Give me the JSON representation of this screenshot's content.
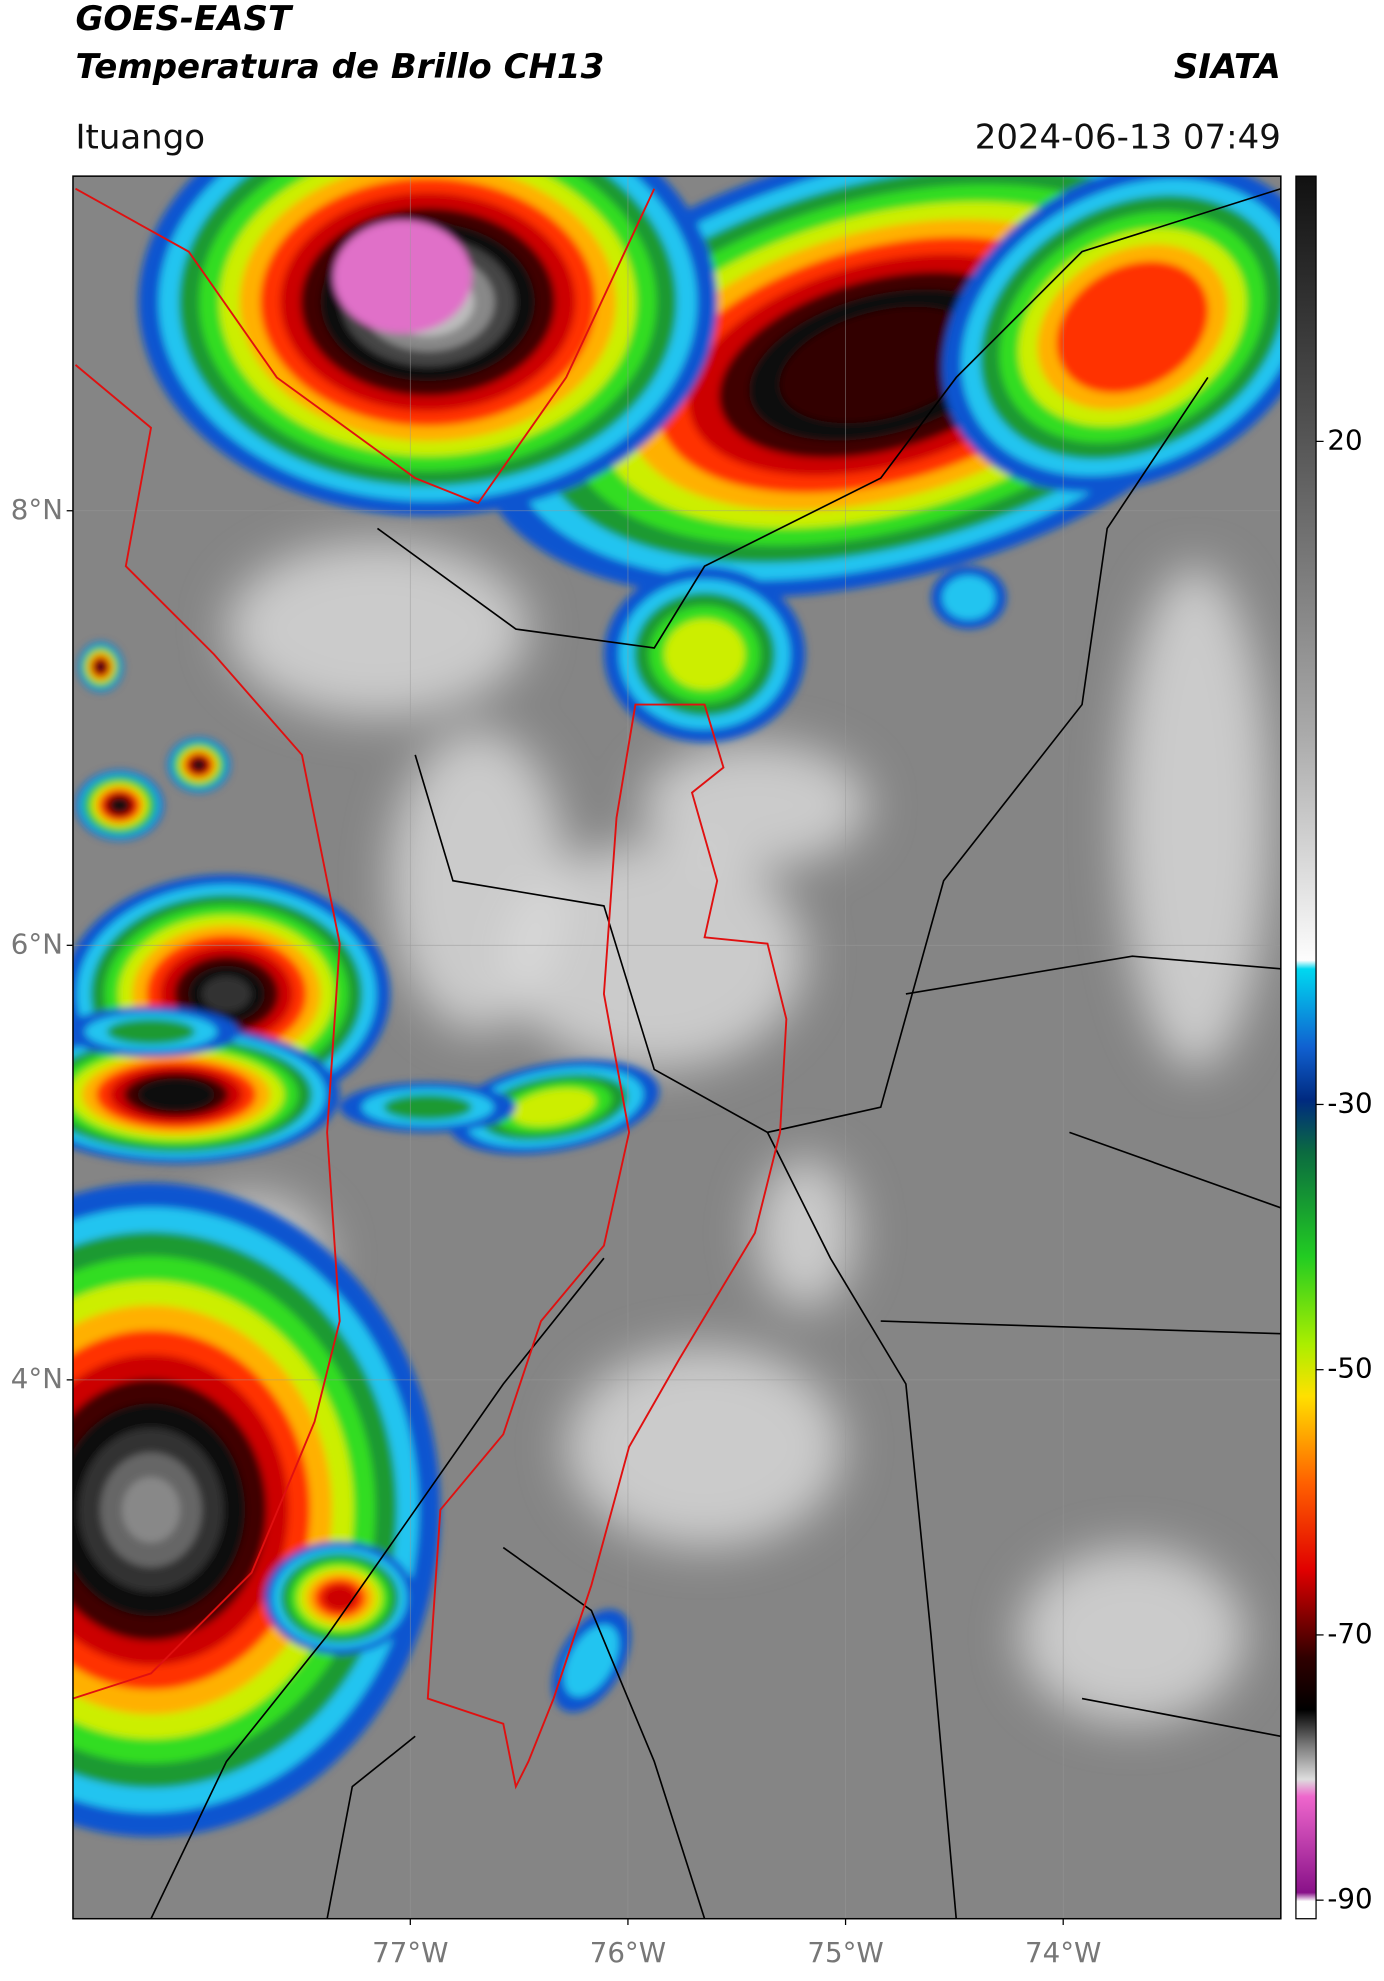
{
  "header": {
    "title": "GOES-EAST",
    "subtitle": "Temperatura de Brillo CH13",
    "brand": "SIATA",
    "location": "Ituango",
    "datetime": "2024-06-13 07:49"
  },
  "map": {
    "xlim": [
      -78.55,
      -73.0
    ],
    "ylim": [
      1.52,
      9.54
    ],
    "xticks": [
      {
        "value": -77,
        "label": "77°W"
      },
      {
        "value": -76,
        "label": "76°W"
      },
      {
        "value": -75,
        "label": "75°W"
      },
      {
        "value": -74,
        "label": "74°W"
      }
    ],
    "yticks": [
      {
        "value": 4,
        "label": "4°N"
      },
      {
        "value": 6,
        "label": "6°N"
      },
      {
        "value": 8,
        "label": "8°N"
      }
    ]
  },
  "colorbar": {
    "lim": [
      -91.4,
      40
    ],
    "ticks": [
      -90,
      -70,
      -50,
      -30,
      20
    ]
  }
}
